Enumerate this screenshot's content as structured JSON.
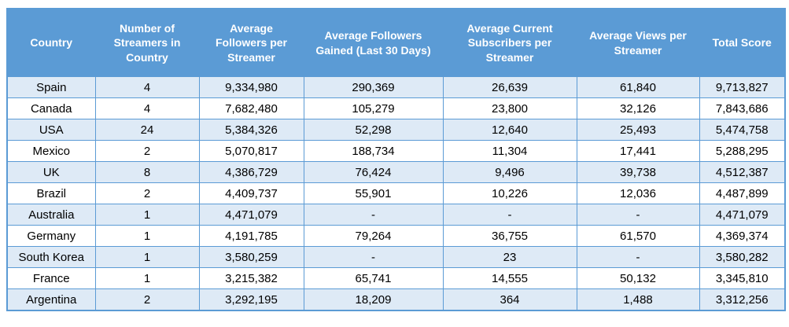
{
  "colors": {
    "header_bg": "#5B9BD5",
    "header_text": "#FFFFFF",
    "row_alt_bg": "#DEEAF6",
    "row_bg": "#FFFFFF",
    "border": "#5B9BD5",
    "text": "#000000"
  },
  "chart_data": {
    "type": "table",
    "title": "",
    "columns": [
      "Country",
      "Number of Streamers in Country",
      "Average Followers per Streamer",
      "Average Followers Gained (Last 30 Days)",
      "Average Current Subscribers per Streamer",
      "Average Views per Streamer",
      "Total Score"
    ],
    "rows": [
      [
        "Spain",
        "4",
        "9,334,980",
        "290,369",
        "26,639",
        "61,840",
        "9,713,827"
      ],
      [
        "Canada",
        "4",
        "7,682,480",
        "105,279",
        "23,800",
        "32,126",
        "7,843,686"
      ],
      [
        "USA",
        "24",
        "5,384,326",
        "52,298",
        "12,640",
        "25,493",
        "5,474,758"
      ],
      [
        "Mexico",
        "2",
        "5,070,817",
        "188,734",
        "11,304",
        "17,441",
        "5,288,295"
      ],
      [
        "UK",
        "8",
        "4,386,729",
        "76,424",
        "9,496",
        "39,738",
        "4,512,387"
      ],
      [
        "Brazil",
        "2",
        "4,409,737",
        "55,901",
        "10,226",
        "12,036",
        "4,487,899"
      ],
      [
        "Australia",
        "1",
        "4,471,079",
        "-",
        "-",
        "-",
        "4,471,079"
      ],
      [
        "Germany",
        "1",
        "4,191,785",
        "79,264",
        "36,755",
        "61,570",
        "4,369,374"
      ],
      [
        "South Korea",
        "1",
        "3,580,259",
        "-",
        "23",
        "-",
        "3,580,282"
      ],
      [
        "France",
        "1",
        "3,215,382",
        "65,741",
        "14,555",
        "50,132",
        "3,345,810"
      ],
      [
        "Argentina",
        "2",
        "3,292,195",
        "18,209",
        "364",
        "1,488",
        "3,312,256"
      ]
    ]
  }
}
